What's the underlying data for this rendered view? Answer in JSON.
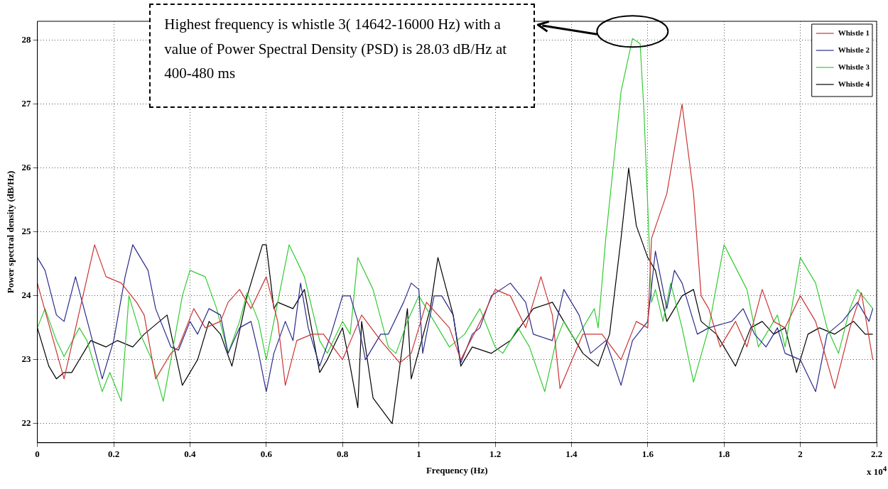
{
  "chart_data": {
    "type": "line",
    "xlabel": "Frequency (Hz)",
    "ylabel": "Power spectral density (dB/Hz)",
    "xlim": [
      0,
      2.2
    ],
    "xticks": [
      0,
      0.2,
      0.4,
      0.6,
      0.8,
      1,
      1.2,
      1.4,
      1.6,
      1.8,
      2,
      2.2
    ],
    "ylim": [
      21.7,
      28.3
    ],
    "yticks": [
      22,
      23,
      24,
      25,
      26,
      27,
      28
    ],
    "grid": true,
    "legend": "top right",
    "marker": "none",
    "line_style": "solid",
    "annotations": [
      "Highest frequency is whistle 3( 14642-16000 Hz) with a value of Power Spectral Density (PSD) is 28.03 dB/Hz at 400-480 ms",
      "x 10$^{4}$"
    ],
    "series": [
      {
        "name": "Whistle 1",
        "color": "#cc3333",
        "x": [
          0,
          0.07,
          0.15,
          0.18,
          0.22,
          0.26,
          0.28,
          0.31,
          0.35,
          0.37,
          0.39,
          0.41,
          0.44,
          0.48,
          0.5,
          0.53,
          0.56,
          0.6,
          0.63,
          0.65,
          0.68,
          0.72,
          0.75,
          0.8,
          0.85,
          0.9,
          0.95,
          0.98,
          1.02,
          1.08,
          1.11,
          1.17,
          1.2,
          1.24,
          1.28,
          1.32,
          1.35,
          1.37,
          1.43,
          1.48,
          1.53,
          1.57,
          1.6,
          1.61,
          1.65,
          1.69,
          1.72,
          1.74,
          1.76,
          1.79,
          1.83,
          1.86,
          1.9,
          1.93,
          1.96,
          2.0,
          2.04,
          2.09,
          2.13,
          2.16,
          2.19
        ],
        "values": [
          24.2,
          22.7,
          24.8,
          24.3,
          24.2,
          23.9,
          23.7,
          22.7,
          23.1,
          23.2,
          23.5,
          23.8,
          23.5,
          23.6,
          23.9,
          24.1,
          23.8,
          24.3,
          23.6,
          22.6,
          23.3,
          23.4,
          23.4,
          23.0,
          23.7,
          23.3,
          22.95,
          23.1,
          23.9,
          23.5,
          23.0,
          23.7,
          24.1,
          24.0,
          23.5,
          24.3,
          23.7,
          22.55,
          23.4,
          23.4,
          23.0,
          23.6,
          23.5,
          24.9,
          25.6,
          27.0,
          25.6,
          24.0,
          23.8,
          23.2,
          23.6,
          23.2,
          24.1,
          23.6,
          23.5,
          24.0,
          23.6,
          22.55,
          23.5,
          24.05,
          23.0
        ]
      },
      {
        "name": "Whistle 2",
        "color": "#2a2a8a",
        "x": [
          0,
          0.02,
          0.05,
          0.07,
          0.1,
          0.14,
          0.17,
          0.2,
          0.23,
          0.25,
          0.29,
          0.31,
          0.35,
          0.37,
          0.4,
          0.42,
          0.45,
          0.48,
          0.5,
          0.53,
          0.56,
          0.58,
          0.6,
          0.62,
          0.65,
          0.67,
          0.69,
          0.71,
          0.74,
          0.77,
          0.8,
          0.82,
          0.84,
          0.86,
          0.9,
          0.92,
          0.96,
          0.98,
          1.0,
          1.01,
          1.04,
          1.06,
          1.09,
          1.11,
          1.14,
          1.16,
          1.19,
          1.24,
          1.28,
          1.3,
          1.35,
          1.38,
          1.42,
          1.45,
          1.49,
          1.53,
          1.56,
          1.6,
          1.62,
          1.65,
          1.67,
          1.69,
          1.73,
          1.76,
          1.82,
          1.85,
          1.88,
          1.91,
          1.94,
          1.96,
          2.0,
          2.04,
          2.07,
          2.11,
          2.15,
          2.18,
          2.19
        ],
        "values": [
          24.6,
          24.4,
          23.7,
          23.6,
          24.3,
          23.4,
          22.7,
          23.3,
          24.3,
          24.8,
          24.4,
          23.8,
          23.2,
          23.15,
          23.6,
          23.4,
          23.8,
          23.7,
          23.1,
          23.5,
          23.6,
          23.1,
          22.5,
          23.1,
          23.6,
          23.3,
          24.2,
          23.5,
          22.9,
          23.4,
          24.0,
          24.0,
          23.6,
          23.0,
          23.4,
          23.4,
          23.9,
          24.2,
          24.1,
          23.1,
          24.0,
          24.0,
          23.7,
          22.95,
          23.4,
          23.5,
          24.0,
          24.2,
          23.9,
          23.4,
          23.3,
          24.1,
          23.7,
          23.1,
          23.3,
          22.6,
          23.3,
          23.6,
          24.7,
          23.8,
          24.4,
          24.2,
          23.4,
          23.5,
          23.6,
          23.8,
          23.4,
          23.2,
          23.5,
          23.1,
          23.0,
          22.5,
          23.4,
          23.6,
          23.9,
          23.6,
          23.8
        ]
      },
      {
        "name": "Whistle 3",
        "color": "#33cc33",
        "x": [
          0,
          0.02,
          0.05,
          0.07,
          0.11,
          0.13,
          0.17,
          0.19,
          0.22,
          0.24,
          0.27,
          0.3,
          0.33,
          0.35,
          0.38,
          0.4,
          0.44,
          0.47,
          0.5,
          0.53,
          0.55,
          0.58,
          0.6,
          0.63,
          0.66,
          0.7,
          0.74,
          0.76,
          0.8,
          0.82,
          0.84,
          0.88,
          0.92,
          0.94,
          0.97,
          1.0,
          1.03,
          1.08,
          1.12,
          1.16,
          1.2,
          1.22,
          1.26,
          1.29,
          1.33,
          1.36,
          1.38,
          1.41,
          1.44,
          1.46,
          1.47,
          1.49,
          1.53,
          1.56,
          1.58,
          1.59,
          1.61,
          1.62,
          1.64,
          1.66,
          1.69,
          1.72,
          1.76,
          1.8,
          1.86,
          1.89,
          1.91,
          1.94,
          1.96,
          2.0,
          2.04,
          2.07,
          2.1,
          2.13,
          2.15,
          2.19
        ],
        "values": [
          23.5,
          23.8,
          23.3,
          23.05,
          23.5,
          23.3,
          22.5,
          22.8,
          22.35,
          24.0,
          23.4,
          23.0,
          22.35,
          23.0,
          24.0,
          24.4,
          24.3,
          23.8,
          23.1,
          23.6,
          24.05,
          23.6,
          23.0,
          23.9,
          24.8,
          24.3,
          23.3,
          23.1,
          23.6,
          23.4,
          24.6,
          24.1,
          23.2,
          23.1,
          23.6,
          24.0,
          23.7,
          23.2,
          23.4,
          23.8,
          23.2,
          23.1,
          23.5,
          23.2,
          22.5,
          23.3,
          23.6,
          23.3,
          23.6,
          23.8,
          23.5,
          24.9,
          27.2,
          28.03,
          27.95,
          26.9,
          23.9,
          24.1,
          23.6,
          24.2,
          23.5,
          22.65,
          23.5,
          24.8,
          24.1,
          23.2,
          23.4,
          23.7,
          23.2,
          24.6,
          24.2,
          23.5,
          23.1,
          23.8,
          24.1,
          23.8
        ]
      },
      {
        "name": "Whistle 4",
        "color": "#000000",
        "x": [
          0,
          0.03,
          0.05,
          0.07,
          0.09,
          0.14,
          0.18,
          0.21,
          0.25,
          0.28,
          0.34,
          0.38,
          0.42,
          0.45,
          0.48,
          0.51,
          0.55,
          0.59,
          0.6,
          0.62,
          0.63,
          0.67,
          0.7,
          0.74,
          0.76,
          0.8,
          0.82,
          0.84,
          0.85,
          0.88,
          0.93,
          0.97,
          0.98,
          1.03,
          1.05,
          1.09,
          1.11,
          1.14,
          1.19,
          1.24,
          1.3,
          1.35,
          1.43,
          1.47,
          1.5,
          1.53,
          1.55,
          1.57,
          1.6,
          1.62,
          1.65,
          1.69,
          1.72,
          1.74,
          1.78,
          1.83,
          1.87,
          1.9,
          1.93,
          1.96,
          1.99,
          2.02,
          2.05,
          2.09,
          2.14,
          2.17,
          2.19
        ],
        "values": [
          23.5,
          22.9,
          22.7,
          22.8,
          22.8,
          23.3,
          23.2,
          23.3,
          23.2,
          23.4,
          23.7,
          22.6,
          23.0,
          23.6,
          23.4,
          22.9,
          24.0,
          24.8,
          24.8,
          23.8,
          23.9,
          23.8,
          24.1,
          22.8,
          23.0,
          23.5,
          22.9,
          22.25,
          23.6,
          22.4,
          22.0,
          23.8,
          22.7,
          23.8,
          24.6,
          23.7,
          22.9,
          23.2,
          23.1,
          23.3,
          23.8,
          23.9,
          23.1,
          22.9,
          23.4,
          24.9,
          26.0,
          25.1,
          24.6,
          24.4,
          23.6,
          24.0,
          24.1,
          23.6,
          23.4,
          22.9,
          23.5,
          23.6,
          23.4,
          23.5,
          22.8,
          23.4,
          23.5,
          23.4,
          23.6,
          23.4,
          23.4
        ]
      }
    ]
  }
}
